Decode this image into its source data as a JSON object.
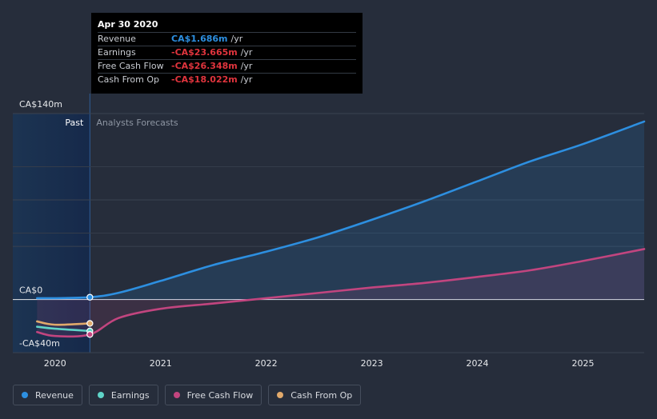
{
  "tooltip": {
    "date": "Apr 30 2020",
    "rows": [
      {
        "label": "Revenue",
        "value": "CA$1.686m",
        "unit": "/yr",
        "color": "#2d8fe0"
      },
      {
        "label": "Earnings",
        "value": "-CA$23.665m",
        "unit": "/yr",
        "color": "#e0343d"
      },
      {
        "label": "Free Cash Flow",
        "value": "-CA$26.348m",
        "unit": "/yr",
        "color": "#e0343d"
      },
      {
        "label": "Cash From Op",
        "value": "-CA$18.022m",
        "unit": "/yr",
        "color": "#e0343d"
      }
    ]
  },
  "chart_data": {
    "type": "line",
    "past_label": "Past",
    "forecast_label": "Analysts Forecasts",
    "y_tick_labels": [
      "CA$140m",
      "CA$0",
      "-CA$40m"
    ],
    "y_ticks": [
      140,
      0,
      -40
    ],
    "ylim": [
      -40,
      140
    ],
    "x_ticks": [
      "2020",
      "2021",
      "2022",
      "2023",
      "2024",
      "2025"
    ],
    "x_tick_values": [
      2020.0,
      2021.0,
      2022.0,
      2023.0,
      2024.0,
      2025.0
    ],
    "xlim": [
      2019.6,
      2025.58
    ],
    "past_end": 2020.33,
    "grid": true,
    "series": [
      {
        "name": "Revenue",
        "color": "#2d8fe0",
        "points": [
          [
            2019.83,
            1
          ],
          [
            2020.0,
            1
          ],
          [
            2020.33,
            1.7
          ],
          [
            2020.6,
            5
          ],
          [
            2021.0,
            14
          ],
          [
            2021.5,
            26
          ],
          [
            2022.0,
            36
          ],
          [
            2022.5,
            47
          ],
          [
            2023.0,
            60
          ],
          [
            2023.5,
            74
          ],
          [
            2024.0,
            89
          ],
          [
            2024.5,
            104
          ],
          [
            2025.0,
            117
          ],
          [
            2025.58,
            134
          ]
        ]
      },
      {
        "name": "Earnings",
        "color": "#5fd4c8",
        "points": [
          [
            2019.83,
            -20.5
          ],
          [
            2020.0,
            -22
          ],
          [
            2020.33,
            -23.7
          ]
        ]
      },
      {
        "name": "Free Cash Flow",
        "color": "#c2457f",
        "points": [
          [
            2019.83,
            -24.5
          ],
          [
            2020.0,
            -27.5
          ],
          [
            2020.33,
            -26.3
          ],
          [
            2020.6,
            -14
          ],
          [
            2021.0,
            -7
          ],
          [
            2021.5,
            -3
          ],
          [
            2022.0,
            1
          ],
          [
            2022.5,
            5
          ],
          [
            2023.0,
            9
          ],
          [
            2023.5,
            12.5
          ],
          [
            2024.0,
            17
          ],
          [
            2024.5,
            22
          ],
          [
            2025.0,
            29
          ],
          [
            2025.58,
            38
          ]
        ]
      },
      {
        "name": "Cash From Op",
        "color": "#e1a96b",
        "points": [
          [
            2019.83,
            -16.5
          ],
          [
            2020.0,
            -19
          ],
          [
            2020.33,
            -18
          ]
        ]
      }
    ]
  },
  "legend": [
    {
      "label": "Revenue",
      "color": "#2d8fe0"
    },
    {
      "label": "Earnings",
      "color": "#5fd4c8"
    },
    {
      "label": "Free Cash Flow",
      "color": "#c2457f"
    },
    {
      "label": "Cash From Op",
      "color": "#e1a96b"
    }
  ]
}
